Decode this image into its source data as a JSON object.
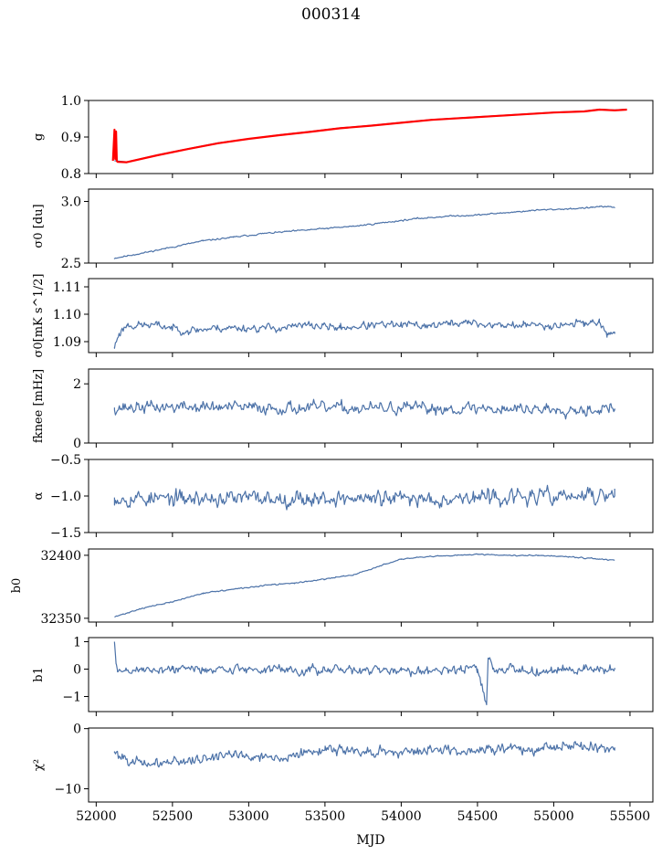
{
  "title": "000314",
  "xlabel": "MJD",
  "colors": {
    "series": "#4c72a8",
    "fit": "#ff0000",
    "frame": "#000000"
  },
  "chart_data": [
    {
      "type": "line",
      "ylabel": "g",
      "xlim": [
        51950,
        55650
      ],
      "ylim": [
        0.8,
        1.0
      ],
      "yticks": [
        0.8,
        0.9,
        1.0
      ],
      "ytick_labels": [
        "0.8",
        "0.9",
        "1.0"
      ],
      "series": [
        {
          "style": "line",
          "x": [
            52120,
            52200,
            52400,
            52600,
            52800,
            53000,
            53200,
            53400,
            53600,
            53800,
            54000,
            54200,
            54400,
            54600,
            54800,
            55000,
            55200,
            55300,
            55400,
            55480
          ],
          "y": [
            0.835,
            0.832,
            0.851,
            0.868,
            0.884,
            0.895,
            0.906,
            0.915,
            0.925,
            0.932,
            0.94,
            0.948,
            0.953,
            0.958,
            0.963,
            0.968,
            0.971,
            0.976,
            0.974,
            0.976
          ]
        },
        {
          "style": "fit",
          "x": [
            52110,
            52120,
            52125,
            52130,
            52135,
            52140,
            52200,
            52400,
            52600,
            52800,
            53000,
            53200,
            53400,
            53600,
            53800,
            54000,
            54200,
            54400,
            54600,
            54800,
            55000,
            55200,
            55300,
            55400,
            55480
          ],
          "y": [
            0.835,
            0.92,
            0.84,
            0.915,
            0.835,
            0.832,
            0.831,
            0.85,
            0.867,
            0.883,
            0.895,
            0.905,
            0.914,
            0.924,
            0.931,
            0.939,
            0.947,
            0.952,
            0.957,
            0.962,
            0.967,
            0.97,
            0.975,
            0.973,
            0.975
          ]
        }
      ]
    },
    {
      "type": "line",
      "ylabel": "σ0 [du]",
      "xlim": [
        51950,
        55650
      ],
      "ylim": [
        2.5,
        3.1
      ],
      "yticks": [
        2.5,
        3.0
      ],
      "ytick_labels": [
        "2.5",
        "3.0"
      ],
      "noise": 0.005,
      "seed": 11,
      "series": [
        {
          "style": "line",
          "x": [
            52120,
            52300,
            52500,
            52700,
            52900,
            53100,
            53300,
            53500,
            53700,
            53900,
            54100,
            54300,
            54500,
            54700,
            54900,
            55100,
            55250,
            55300,
            55400
          ],
          "y": [
            2.54,
            2.58,
            2.63,
            2.68,
            2.71,
            2.74,
            2.76,
            2.78,
            2.8,
            2.83,
            2.86,
            2.88,
            2.89,
            2.91,
            2.93,
            2.94,
            2.95,
            2.96,
            2.95
          ]
        }
      ]
    },
    {
      "type": "line",
      "ylabel": "σ0[mK s^1/2]",
      "xlim": [
        51950,
        55650
      ],
      "ylim": [
        1.086,
        1.113
      ],
      "yticks": [
        1.09,
        1.1,
        1.11
      ],
      "ytick_labels": [
        "1.09",
        "1.10",
        "1.11"
      ],
      "noise": 0.0012,
      "seed": 23,
      "series": [
        {
          "style": "line",
          "x": [
            52120,
            52150,
            52200,
            52400,
            52600,
            52800,
            53000,
            53200,
            53400,
            53600,
            53800,
            54000,
            54200,
            54400,
            54600,
            54800,
            55000,
            55200,
            55300,
            55350,
            55400
          ],
          "y": [
            1.088,
            1.093,
            1.096,
            1.096,
            1.094,
            1.095,
            1.095,
            1.095,
            1.096,
            1.095,
            1.096,
            1.096,
            1.096,
            1.097,
            1.096,
            1.096,
            1.096,
            1.097,
            1.097,
            1.093,
            1.093
          ]
        }
      ]
    },
    {
      "type": "line",
      "ylabel": "fknee [mHz]",
      "xlim": [
        51950,
        55650
      ],
      "ylim": [
        0,
        2.5
      ],
      "yticks": [
        0,
        2
      ],
      "ytick_labels": [
        "0",
        "2"
      ],
      "noise": 0.17,
      "seed": 37,
      "series": [
        {
          "style": "line",
          "x": [
            52120,
            52500,
            53000,
            53500,
            54000,
            54500,
            55000,
            55400
          ],
          "y": [
            1.2,
            1.22,
            1.2,
            1.18,
            1.17,
            1.17,
            1.15,
            1.15
          ]
        }
      ]
    },
    {
      "type": "line",
      "ylabel": "α",
      "xlim": [
        51950,
        55650
      ],
      "ylim": [
        -1.5,
        -0.5
      ],
      "yticks": [
        -1.5,
        -1.0,
        -0.5
      ],
      "ytick_labels": [
        "−1.5",
        "−1.0",
        "−0.5"
      ],
      "noise": 0.09,
      "seed": 53,
      "series": [
        {
          "style": "line",
          "x": [
            52120,
            52500,
            53000,
            53500,
            54000,
            54500,
            55000,
            55400
          ],
          "y": [
            -1.02,
            -1.04,
            -1.03,
            -1.03,
            -1.04,
            -1.02,
            -1.01,
            -1.0
          ]
        }
      ]
    },
    {
      "type": "line",
      "ylabel": "b0",
      "xlim": [
        51950,
        55650
      ],
      "ylim": [
        32347,
        32405
      ],
      "yticks": [
        32350,
        32400
      ],
      "ytick_labels": [
        "32350",
        "32400"
      ],
      "noise": 0.4,
      "seed": 71,
      "series": [
        {
          "style": "line",
          "x": [
            52120,
            52300,
            52500,
            52700,
            52900,
            53100,
            53300,
            53500,
            53700,
            53900,
            54000,
            54200,
            54400,
            54500,
            54700,
            54900,
            55100,
            55300,
            55400
          ],
          "y": [
            32351,
            32358,
            32363,
            32370,
            32373,
            32376,
            32378,
            32381,
            32385,
            32393,
            32397,
            32399,
            32400,
            32401,
            32400,
            32400,
            32399,
            32397,
            32396
          ]
        }
      ]
    },
    {
      "type": "line",
      "ylabel": "b1",
      "xlim": [
        51950,
        55650
      ],
      "ylim": [
        -1.55,
        1.15
      ],
      "yticks": [
        -1,
        0,
        1
      ],
      "ytick_labels": [
        "−1",
        "0",
        "1"
      ],
      "noise": 0.14,
      "seed": 89,
      "series": [
        {
          "style": "line",
          "x": [
            52120,
            52130,
            52140,
            52200,
            52500,
            53000,
            53500,
            54000,
            54500,
            54560,
            54570,
            54600,
            55000,
            55200,
            55400
          ],
          "y": [
            1.0,
            0.2,
            -0.1,
            -0.05,
            0.0,
            0.0,
            -0.05,
            -0.05,
            0.0,
            -1.3,
            0.4,
            0.0,
            -0.05,
            0.0,
            0.0
          ]
        }
      ]
    },
    {
      "type": "line",
      "ylabel": "χ²",
      "xlim": [
        51950,
        55650
      ],
      "ylim": [
        -12.2,
        0.1
      ],
      "yticks": [
        -10,
        0
      ],
      "ytick_labels": [
        "−10",
        "0"
      ],
      "noise": 0.7,
      "seed": 101,
      "series": [
        {
          "style": "line",
          "x": [
            52120,
            52300,
            52500,
            52700,
            52900,
            53100,
            53300,
            53500,
            53700,
            53900,
            54100,
            54300,
            54500,
            54700,
            54900,
            55100,
            55300,
            55400
          ],
          "y": [
            -4.0,
            -6.0,
            -5.5,
            -5.0,
            -4.2,
            -4.8,
            -4.5,
            -3.5,
            -3.6,
            -4.0,
            -3.8,
            -3.5,
            -3.5,
            -3.3,
            -3.2,
            -2.8,
            -3.0,
            -3.2
          ]
        }
      ]
    }
  ],
  "xticks": [
    52000,
    52500,
    53000,
    53500,
    54000,
    54500,
    55000,
    55500
  ],
  "xtick_labels": [
    "52000",
    "52500",
    "53000",
    "53500",
    "54000",
    "54500",
    "55000",
    "55500"
  ]
}
